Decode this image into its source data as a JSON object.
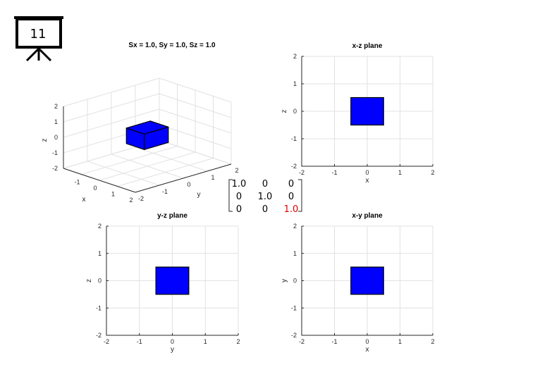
{
  "slide_number": "11",
  "matrix": {
    "rows": [
      [
        "1.0",
        "0",
        "0"
      ],
      [
        "0",
        "1.0",
        "0"
      ],
      [
        "0",
        "0",
        "1.0"
      ]
    ],
    "highlight": [
      2,
      2
    ],
    "highlight_color": "#e00000"
  },
  "colors": {
    "cube": "#0000ff",
    "grid": "#e1e1e1",
    "axis": "#262626"
  },
  "chart_data": [
    {
      "type": "3d-surface",
      "title": "Sx = 1.0, Sy = 1.0, Sz = 1.0",
      "xlabel": "x",
      "ylabel": "y",
      "zlabel": "z",
      "xlim": [
        -2,
        2
      ],
      "ylim": [
        -2,
        2
      ],
      "zlim": [
        -2,
        2
      ],
      "xticks": [
        "-1",
        "0",
        "1",
        "2"
      ],
      "yticks": [
        "-2",
        "-1",
        "0",
        "1",
        "2"
      ],
      "zticks": [
        "-2",
        "-1",
        "0",
        "1",
        "2"
      ],
      "cube": {
        "x": [
          -0.5,
          0.5
        ],
        "y": [
          -0.5,
          0.5
        ],
        "z": [
          -0.5,
          0.5
        ]
      },
      "grid": true
    },
    {
      "type": "area",
      "title": "x-z plane",
      "xlabel": "x",
      "ylabel": "z",
      "xlim": [
        -2,
        2
      ],
      "ylim": [
        -2,
        2
      ],
      "xticks": [
        "-2",
        "-1",
        "0",
        "1",
        "2"
      ],
      "yticks": [
        "-2",
        "-1",
        "0",
        "1",
        "2"
      ],
      "rect": {
        "x": [
          -0.5,
          0.5
        ],
        "y": [
          -0.5,
          0.5
        ]
      },
      "grid": true
    },
    {
      "type": "area",
      "title": "y-z plane",
      "xlabel": "y",
      "ylabel": "z",
      "xlim": [
        -2,
        2
      ],
      "ylim": [
        -2,
        2
      ],
      "xticks": [
        "-2",
        "-1",
        "0",
        "1",
        "2"
      ],
      "yticks": [
        "-2",
        "-1",
        "0",
        "1",
        "2"
      ],
      "rect": {
        "x": [
          -0.5,
          0.5
        ],
        "y": [
          -0.5,
          0.5
        ]
      },
      "grid": true
    },
    {
      "type": "area",
      "title": "x-y plane",
      "xlabel": "x",
      "ylabel": "y",
      "xlim": [
        -2,
        2
      ],
      "ylim": [
        -2,
        2
      ],
      "xticks": [
        "-2",
        "-1",
        "0",
        "1",
        "2"
      ],
      "yticks": [
        "-2",
        "-1",
        "0",
        "1",
        "2"
      ],
      "rect": {
        "x": [
          -0.5,
          0.5
        ],
        "y": [
          -0.5,
          0.5
        ]
      },
      "grid": true
    }
  ]
}
